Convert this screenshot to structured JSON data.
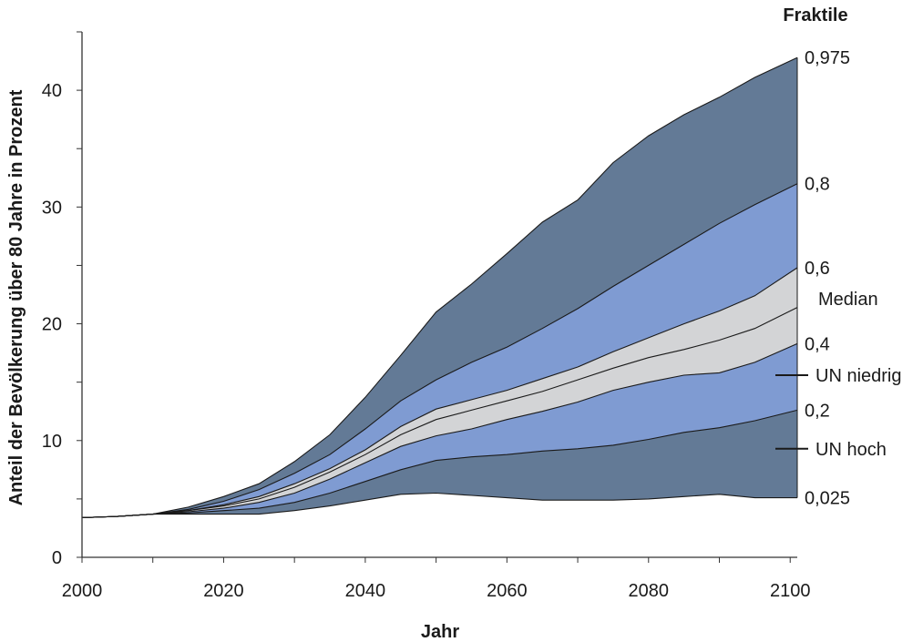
{
  "chart_data": {
    "type": "area",
    "title": "",
    "xlabel": "Jahr",
    "ylabel": "Anteil der Bevölkerung über 80 Jahre in Prozent",
    "xlim": [
      2000,
      2101
    ],
    "ylim": [
      0,
      45
    ],
    "x_ticks": [
      "2000",
      "2020",
      "2040",
      "2060",
      "2080",
      "2100"
    ],
    "y_ticks": [
      "0",
      "10",
      "20",
      "30",
      "40"
    ],
    "legend_title": "Fraktile",
    "x": [
      2000,
      2005,
      2010,
      2015,
      2020,
      2025,
      2030,
      2035,
      2040,
      2045,
      2050,
      2055,
      2060,
      2065,
      2070,
      2075,
      2080,
      2085,
      2090,
      2095,
      2101
    ],
    "series": [
      {
        "name": "0,025",
        "values": [
          3.4,
          3.5,
          3.7,
          3.7,
          3.7,
          3.7,
          4.0,
          4.4,
          4.9,
          5.4,
          5.5,
          5.3,
          5.1,
          4.9,
          4.9,
          4.9,
          5.0,
          5.2,
          5.4,
          5.1,
          5.1
        ]
      },
      {
        "name": "0,2",
        "values": [
          3.4,
          3.5,
          3.7,
          3.8,
          4.0,
          4.2,
          4.7,
          5.5,
          6.5,
          7.5,
          8.3,
          8.6,
          8.8,
          9.1,
          9.3,
          9.6,
          10.1,
          10.7,
          11.1,
          11.7,
          12.6
        ]
      },
      {
        "name": "0,4",
        "values": [
          3.4,
          3.5,
          3.7,
          3.9,
          4.2,
          4.7,
          5.5,
          6.7,
          8.1,
          9.5,
          10.4,
          11.0,
          11.8,
          12.5,
          13.3,
          14.3,
          15.0,
          15.6,
          15.8,
          16.7,
          18.3
        ]
      },
      {
        "name": "Median",
        "values": [
          3.4,
          3.5,
          3.7,
          4.0,
          4.4,
          5.0,
          6.0,
          7.3,
          8.8,
          10.5,
          11.8,
          12.6,
          13.4,
          14.2,
          15.2,
          16.2,
          17.1,
          17.8,
          18.6,
          19.6,
          21.4
        ]
      },
      {
        "name": "0,6",
        "values": [
          3.4,
          3.5,
          3.7,
          4.0,
          4.5,
          5.2,
          6.3,
          7.6,
          9.2,
          11.2,
          12.7,
          13.5,
          14.3,
          15.3,
          16.3,
          17.6,
          18.8,
          20.0,
          21.1,
          22.4,
          24.8
        ]
      },
      {
        "name": "0,8",
        "values": [
          3.4,
          3.5,
          3.7,
          4.1,
          4.8,
          5.8,
          7.2,
          8.8,
          11.0,
          13.4,
          15.2,
          16.7,
          18.0,
          19.6,
          21.3,
          23.2,
          25.0,
          26.8,
          28.6,
          30.2,
          32.0
        ]
      },
      {
        "name": "0,975",
        "values": [
          3.4,
          3.5,
          3.7,
          4.3,
          5.2,
          6.3,
          8.2,
          10.5,
          13.7,
          17.3,
          21.0,
          23.4,
          26.0,
          28.7,
          30.6,
          33.8,
          36.1,
          37.9,
          39.4,
          41.1,
          42.8
        ]
      }
    ],
    "markers": [
      {
        "name": "UN niedrig",
        "value": 15.6
      },
      {
        "name": "UN hoch",
        "value": 9.3
      }
    ],
    "colors": {
      "outer_band": "#637a96",
      "middle_band": "#7f9bd2",
      "inner_band": "#d3d4d6",
      "line": "#1a1a1a",
      "axis": "#333333"
    }
  }
}
